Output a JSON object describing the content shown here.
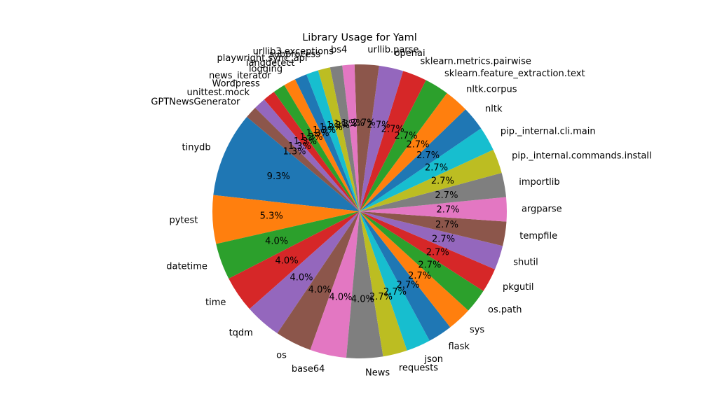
{
  "chart_data": {
    "type": "pie",
    "title": "Library Usage for Yaml",
    "start_angle_deg": 140,
    "direction": "counterclockwise",
    "categories": [
      "tinydb",
      "pytest",
      "datetime",
      "time",
      "tqdm",
      "os",
      "base64",
      "News",
      "requests",
      "json",
      "flask",
      "sys",
      "os.path",
      "pkgutil",
      "shutil",
      "tempfile",
      "argparse",
      "importlib",
      "pip._internal.commands.install",
      "pip._internal.cli.main",
      "nltk",
      "nltk.corpus",
      "sklearn.feature_extraction.text",
      "sklearn.metrics.pairwise",
      "openai",
      "urllib.parse",
      "bs4",
      "urllib3.exceptions",
      "subprocess",
      "playwright.sync_api",
      "langdetect",
      "logging",
      "news_iterator",
      "Wordpress",
      "unittest.mock",
      "GPTNewsGenerator"
    ],
    "values": [
      7,
      4,
      3,
      3,
      3,
      3,
      3,
      3,
      2,
      2,
      2,
      2,
      2,
      2,
      2,
      2,
      2,
      2,
      2,
      2,
      2,
      2,
      2,
      2,
      2,
      2,
      1,
      1,
      1,
      1,
      1,
      1,
      1,
      1,
      1,
      1
    ],
    "percent_labels": [
      "9.3%",
      "5.3%",
      "4.0%",
      "4.0%",
      "4.0%",
      "4.0%",
      "4.0%",
      "4.0%",
      "2.7%",
      "2.7%",
      "2.7%",
      "2.7%",
      "2.7%",
      "2.7%",
      "2.7%",
      "2.7%",
      "2.7%",
      "2.7%",
      "2.7%",
      "2.7%",
      "2.7%",
      "2.7%",
      "2.7%",
      "2.7%",
      "2.7%",
      "2.7%",
      "1.3%",
      "1.3%",
      "1.3%",
      "1.3%",
      "1.3%",
      "1.3%",
      "1.3%",
      "1.3%",
      "1.3%",
      "1.3%"
    ],
    "colors": [
      "#1f77b4",
      "#ff7f0e",
      "#2ca02c",
      "#d62728",
      "#9467bd",
      "#8c564b",
      "#e377c2",
      "#7f7f7f",
      "#bcbd22",
      "#17becf"
    ]
  }
}
